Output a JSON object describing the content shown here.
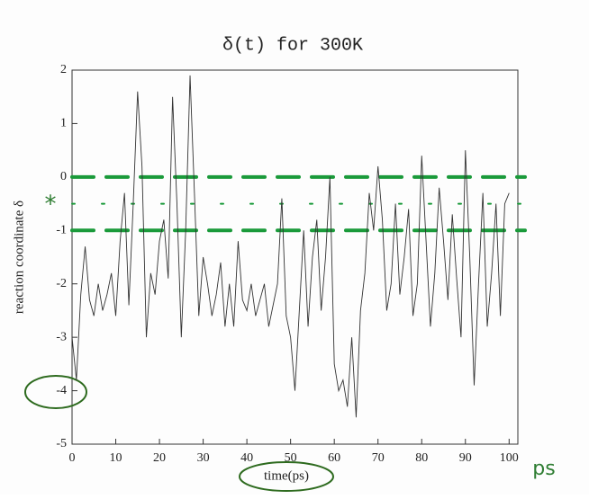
{
  "chart_data": {
    "type": "line",
    "title": "δ(t) for 300K",
    "xlabel": "time(ps)",
    "ylabel": "reaction coordinate δ",
    "x": [
      0,
      1,
      2,
      3,
      4,
      5,
      6,
      7,
      8,
      9,
      10,
      11,
      12,
      13,
      14,
      15,
      16,
      17,
      18,
      19,
      20,
      21,
      22,
      23,
      24,
      25,
      26,
      27,
      28,
      29,
      30,
      31,
      32,
      33,
      34,
      35,
      36,
      37,
      38,
      39,
      40,
      41,
      42,
      43,
      44,
      45,
      46,
      47,
      48,
      49,
      50,
      51,
      52,
      53,
      54,
      55,
      56,
      57,
      58,
      59,
      60,
      61,
      62,
      63,
      64,
      65,
      66,
      67,
      68,
      69,
      70,
      71,
      72,
      73,
      74,
      75,
      76,
      77,
      78,
      79,
      80,
      81,
      82,
      83,
      84,
      85,
      86,
      87,
      88,
      89,
      90,
      91,
      92,
      93,
      94,
      95,
      96,
      97,
      98,
      99,
      100
    ],
    "series": [
      {
        "name": "δ(t)",
        "color": "#333333",
        "values": [
          -3.0,
          -3.8,
          -2.2,
          -1.3,
          -2.3,
          -2.6,
          -2.0,
          -2.5,
          -2.2,
          -1.8,
          -2.6,
          -1.2,
          -0.3,
          -2.4,
          -0.5,
          1.6,
          0.2,
          -3.0,
          -1.8,
          -2.2,
          -1.2,
          -0.8,
          -1.9,
          1.5,
          -0.5,
          -3.0,
          -1.0,
          1.9,
          -0.3,
          -2.6,
          -1.5,
          -2.0,
          -2.6,
          -2.2,
          -1.6,
          -2.8,
          -2.0,
          -2.8,
          -1.2,
          -2.3,
          -2.5,
          -2.0,
          -2.6,
          -2.3,
          -2.0,
          -2.8,
          -2.4,
          -2.0,
          -0.4,
          -2.6,
          -3.0,
          -4.0,
          -2.5,
          -1.0,
          -2.8,
          -1.5,
          -0.8,
          -2.5,
          -1.5,
          0.0,
          -3.5,
          -4.0,
          -3.8,
          -4.3,
          -3.0,
          -4.5,
          -2.5,
          -1.8,
          -0.3,
          -1.0,
          0.2,
          -0.8,
          -2.5,
          -2.0,
          -0.5,
          -2.2,
          -1.5,
          -0.6,
          -2.6,
          -2.0,
          0.4,
          -1.2,
          -2.8,
          -1.8,
          -0.2,
          -1.2,
          -2.3,
          -0.7,
          -1.9,
          -3.0,
          0.5,
          -1.5,
          -3.9,
          -2.0,
          -0.3,
          -2.8,
          -1.8,
          -0.5,
          -2.6,
          -0.5,
          -0.3
        ]
      }
    ],
    "xlim": [
      0,
      102
    ],
    "xticks": [
      0,
      10,
      20,
      30,
      40,
      50,
      60,
      70,
      80,
      90,
      100
    ],
    "ylim": [
      -5,
      2
    ],
    "yticks": [
      -5,
      -4,
      -3,
      -2,
      -1,
      0,
      1,
      2
    ],
    "reference_lines": {
      "color": "#1a9a3a",
      "values": [
        0,
        -0.5,
        -1
      ]
    },
    "annotations": [
      "*",
      "ps"
    ]
  }
}
